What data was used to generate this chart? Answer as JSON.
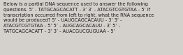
{
  "text": "Below is a partial DNA sequence used to answer the following\nquestions. 5’ - TATGCAGCACATT - 3’ 3’ - ATACGTCGTGTAA - 5’ If\ntranscription occurred from left to right, what the RNA sequence\nwould be produced? 5’ - UAUGCAGCACAUU - 3’ 3’ -\nATACGTCGTGTAA - 5’ 5’ - AUGCAGCACAUU - 3’ 5’ -\nTATGCAGCACATT - 3’ 3’ - AUACGUCGUGUAA - 5’",
  "bg_color": "#d4d0cb",
  "text_color": "#1a1a1a",
  "font_size": 4.8,
  "fig_width": 2.62,
  "fig_height": 0.79,
  "dpi": 100
}
